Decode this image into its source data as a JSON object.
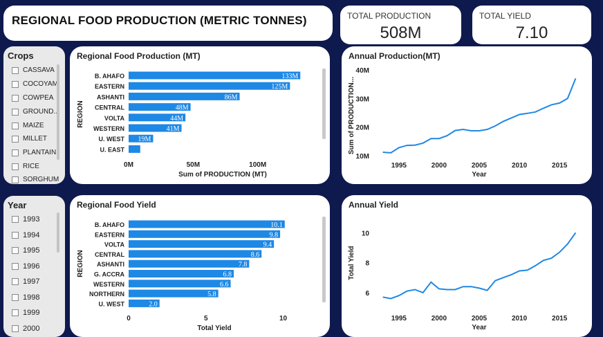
{
  "header": {
    "title": "REGIONAL FOOD PRODUCTION (METRIC TONNES)"
  },
  "kpis": [
    {
      "label": "TOTAL PRODUCTION",
      "value": "508M"
    },
    {
      "label": "TOTAL YIELD",
      "value": "7.10"
    }
  ],
  "crops_slicer": {
    "title": "Crops",
    "items": [
      "CASSAVA",
      "COCOYAM",
      "COWPEA",
      "GROUND...",
      "MAIZE",
      "MILLET",
      "PLANTAIN",
      "RICE",
      "SORGHUM"
    ]
  },
  "year_slicer": {
    "title": "Year",
    "items": [
      "1993",
      "1994",
      "1995",
      "1996",
      "1997",
      "1998",
      "1999",
      "2000"
    ]
  },
  "colors": {
    "accent": "#1e88e5",
    "background": "#0e1a4d"
  },
  "chart_data": [
    {
      "type": "bar",
      "title": "Regional Food Production (MT)",
      "orientation": "horizontal",
      "categories": [
        "B. AHAFO",
        "EASTERN",
        "ASHANTI",
        "CENTRAL",
        "VOLTA",
        "WESTERN",
        "U. WEST",
        "U. EAST"
      ],
      "values": [
        133,
        125,
        86,
        48,
        44,
        41,
        19,
        9
      ],
      "data_labels": [
        "133M",
        "125M",
        "86M",
        "48M",
        "44M",
        "41M",
        "19M",
        ""
      ],
      "xlabel": "Sum of PRODUCTION (MT)",
      "ylabel": "REGION",
      "xticks": [
        "0M",
        "50M",
        "100M"
      ],
      "xtick_values": [
        0,
        50,
        100
      ],
      "xlim": [
        0,
        135
      ]
    },
    {
      "type": "line",
      "title": "Annual Production(MT)",
      "x": [
        1993,
        1994,
        1995,
        1996,
        1997,
        1998,
        1999,
        2000,
        2001,
        2002,
        2003,
        2004,
        2005,
        2006,
        2007,
        2008,
        2009,
        2010,
        2011,
        2012,
        2013,
        2014,
        2015,
        2016,
        2017
      ],
      "y": [
        11.2,
        11.0,
        12.8,
        13.6,
        13.7,
        14.4,
        16.0,
        16.0,
        17.0,
        18.8,
        19.2,
        18.7,
        18.7,
        19.2,
        20.4,
        22.0,
        23.2,
        24.4,
        24.8,
        25.3,
        26.6,
        27.8,
        28.4,
        30.0,
        37.0
      ],
      "xlabel": "Year",
      "ylabel": "Sum of PRODUCTION...",
      "xticks": [
        1995,
        2000,
        2005,
        2010,
        2015
      ],
      "yticks": [
        "10M",
        "20M",
        "30M",
        "40M"
      ],
      "ytick_values": [
        10,
        20,
        30,
        40
      ],
      "ylim": [
        10,
        40
      ],
      "xlim": [
        1992,
        2018
      ]
    },
    {
      "type": "bar",
      "title": "Regional Food Yield",
      "orientation": "horizontal",
      "categories": [
        "B. AHAFO",
        "EASTERN",
        "VOLTA",
        "CENTRAL",
        "ASHANTI",
        "G. ACCRA",
        "WESTERN",
        "NORTHERN",
        "U. WEST"
      ],
      "values": [
        10.1,
        9.8,
        9.4,
        8.6,
        7.8,
        6.8,
        6.6,
        5.8,
        2.0
      ],
      "data_labels": [
        "10.1",
        "9.8",
        "9.4",
        "8.6",
        "7.8",
        "6.8",
        "6.6",
        "5.8",
        "2.0"
      ],
      "xlabel": "Total Yield",
      "ylabel": "REGION",
      "xticks": [
        "0",
        "5",
        "10"
      ],
      "xtick_values": [
        0,
        5,
        10
      ],
      "xlim": [
        0,
        10.2
      ]
    },
    {
      "type": "line",
      "title": "Annual Yield",
      "x": [
        1993,
        1994,
        1995,
        1996,
        1997,
        1998,
        1999,
        2000,
        2001,
        2002,
        2003,
        2004,
        2005,
        2006,
        2007,
        2008,
        2009,
        2010,
        2011,
        2012,
        2013,
        2014,
        2015,
        2016,
        2017
      ],
      "y": [
        5.7,
        5.6,
        5.8,
        6.1,
        6.2,
        6.0,
        6.7,
        6.25,
        6.2,
        6.2,
        6.4,
        6.4,
        6.3,
        6.15,
        6.8,
        7.0,
        7.2,
        7.45,
        7.5,
        7.8,
        8.15,
        8.3,
        8.7,
        9.25,
        10.0
      ],
      "xlabel": "Year",
      "ylabel": "Total Yield",
      "xticks": [
        1995,
        2000,
        2005,
        2010,
        2015
      ],
      "yticks": [
        "6",
        "8",
        "10"
      ],
      "ytick_values": [
        6,
        8,
        10
      ],
      "ylim": [
        5.3,
        10.2
      ],
      "xlim": [
        1992,
        2018
      ]
    }
  ]
}
